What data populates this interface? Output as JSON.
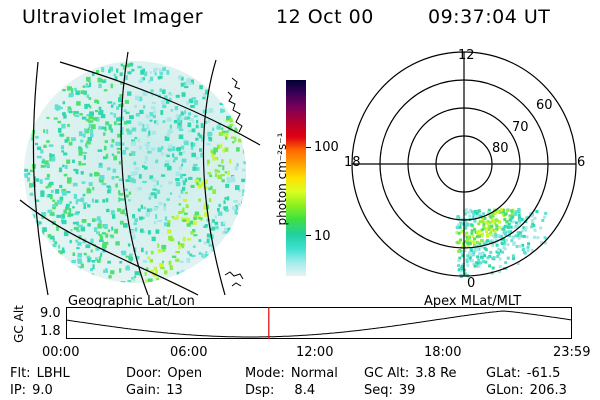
{
  "header": {
    "instrument": "Ultraviolet Imager",
    "date": "12 Oct 00",
    "time": "09:37:04 UT"
  },
  "colorbar": {
    "unit_label": "photon cm⁻²s⁻¹",
    "ticks": [
      "100",
      "10"
    ],
    "colors": [
      "#000033",
      "#3a0058",
      "#7a0059",
      "#b00030",
      "#e00010",
      "#ff6a00",
      "#ffa200",
      "#ffe000",
      "#d8ff20",
      "#8cf020",
      "#3ee040",
      "#20d0a0",
      "#40e0d0",
      "#a0ecec",
      "#e6f4f4"
    ]
  },
  "image_panels": {
    "left_label": "Geographic Lat/Lon",
    "right_label": "Apex MLat/MLT"
  },
  "polar_grid": {
    "mlt_labels": {
      "top": "12",
      "left": "18",
      "right": "6",
      "bottom": "0"
    },
    "lat_labels": [
      "60",
      "70",
      "80"
    ]
  },
  "altitude_plot": {
    "ylabel": "GC Alt",
    "y_ticks": [
      "9.0",
      "1.8"
    ],
    "x_ticks": [
      "00:00",
      "06:00",
      "12:00",
      "18:00",
      "23:59"
    ],
    "current_time_marker": "09:37"
  },
  "info": {
    "filter_label": "Flt:",
    "filter": "LBHL",
    "ip_label": "IP:",
    "ip": "9.0",
    "door_label": "Door:",
    "door": "Open",
    "gain_label": "Gain:",
    "gain": "13",
    "mode_label": "Mode:",
    "mode": "Normal",
    "dsp_label": "Dsp:",
    "dsp": "8.4",
    "gcalt_label": "GC Alt:",
    "gcalt": "3.8 Re",
    "seq_label": "Seq:",
    "seq": "39",
    "glat_label": "GLat:",
    "glat": "-61.5",
    "glon_label": "GLon:",
    "glon": "206.3"
  }
}
